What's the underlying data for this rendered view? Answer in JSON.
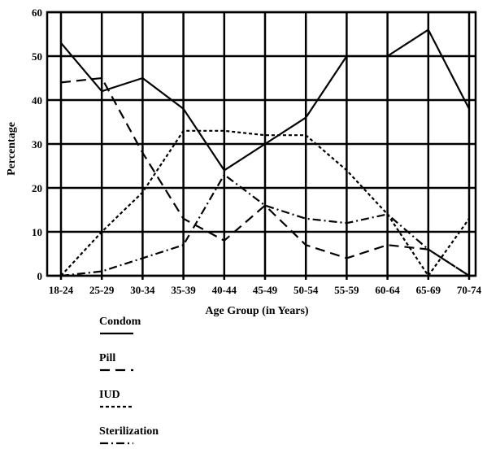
{
  "chart_data": {
    "type": "line",
    "title": "",
    "xlabel": "Age Group (in Years)",
    "ylabel": "Percentage",
    "categories": [
      "18-24",
      "25-29",
      "30-34",
      "35-39",
      "40-44",
      "45-49",
      "50-54",
      "55-59",
      "60-64",
      "65-69",
      "70-74"
    ],
    "ylim": [
      0,
      60
    ],
    "yticks": [
      0,
      10,
      20,
      30,
      40,
      50,
      60
    ],
    "grid": true,
    "legend_position": "bottom-left",
    "series": [
      {
        "name": "Condom",
        "style": "solid",
        "values": [
          53,
          42,
          45,
          38,
          24,
          30,
          36,
          50,
          50,
          56,
          38
        ]
      },
      {
        "name": "Pill",
        "style": "dashed",
        "values": [
          44,
          45,
          28,
          13,
          8,
          16,
          7,
          4,
          7,
          6,
          0
        ]
      },
      {
        "name": "IUD",
        "style": "dotted",
        "values": [
          0,
          10,
          19,
          33,
          33,
          32,
          32,
          24,
          14,
          0,
          13
        ]
      },
      {
        "name": "Sterilization",
        "style": "dashdot",
        "values": [
          0,
          1,
          4,
          7,
          23,
          16,
          13,
          12,
          14,
          6,
          0
        ]
      }
    ]
  },
  "colors": {
    "line": "#000000",
    "background": "#ffffff"
  }
}
